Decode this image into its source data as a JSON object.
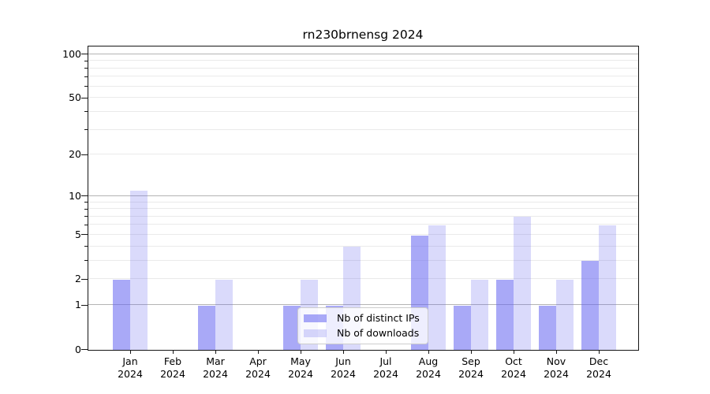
{
  "title": "rn230brnensg 2024",
  "legend": {
    "items": [
      {
        "label": "Nb of distinct IPs",
        "series": "distinct_ips"
      },
      {
        "label": "Nb of downloads",
        "series": "downloads"
      }
    ]
  },
  "colors": {
    "bar_base": "#6666f0",
    "distinct_ips_fill": "rgba(102,102,240,0.56)",
    "downloads_fill": "rgba(102,102,240,0.24)",
    "major_gridline": "#b4b4b4",
    "minor_gridline": "#eaeaea",
    "axis_line": "#151515",
    "text": "#000000"
  },
  "y_axis": {
    "scale": "log1p",
    "tick_labels": [
      "100",
      "50",
      "20",
      "10",
      "5",
      "2",
      "1",
      "0"
    ],
    "tick_values": [
      100,
      50,
      20,
      10,
      5,
      2,
      1,
      0
    ],
    "minor_tick_values": [
      3,
      4,
      6,
      7,
      8,
      9,
      30,
      40,
      60,
      70,
      80,
      90
    ],
    "major_gridlines": [
      1,
      10,
      100
    ],
    "minor_gridlines": [
      2,
      3,
      4,
      5,
      6,
      7,
      8,
      9,
      20,
      30,
      40,
      50,
      60,
      70,
      80,
      90
    ]
  },
  "x_axis": {
    "months": [
      "Jan",
      "Feb",
      "Mar",
      "Apr",
      "May",
      "Jun",
      "Jul",
      "Aug",
      "Sep",
      "Oct",
      "Nov",
      "Dec"
    ],
    "year": "2024"
  },
  "chart_data": {
    "type": "bar",
    "title": "rn230brnensg 2024",
    "categories": [
      "Jan 2024",
      "Feb 2024",
      "Mar 2024",
      "Apr 2024",
      "May 2024",
      "Jun 2024",
      "Jul 2024",
      "Aug 2024",
      "Sep 2024",
      "Oct 2024",
      "Nov 2024",
      "Dec 2024"
    ],
    "series": [
      {
        "name": "Nb of distinct IPs",
        "values": [
          2,
          0,
          1,
          0,
          1,
          1,
          0,
          5,
          1,
          2,
          1,
          3
        ]
      },
      {
        "name": "Nb of downloads",
        "values": [
          11,
          0,
          2,
          0,
          2,
          4,
          0,
          6,
          2,
          7,
          2,
          6
        ]
      }
    ],
    "xlabel": "",
    "ylabel": "",
    "y_scale": "log1p",
    "y_ticks": [
      0,
      1,
      2,
      5,
      10,
      20,
      50,
      100
    ],
    "ylim": [
      0,
      114
    ],
    "grid": true,
    "legend_position": "inside-bottom-center"
  }
}
